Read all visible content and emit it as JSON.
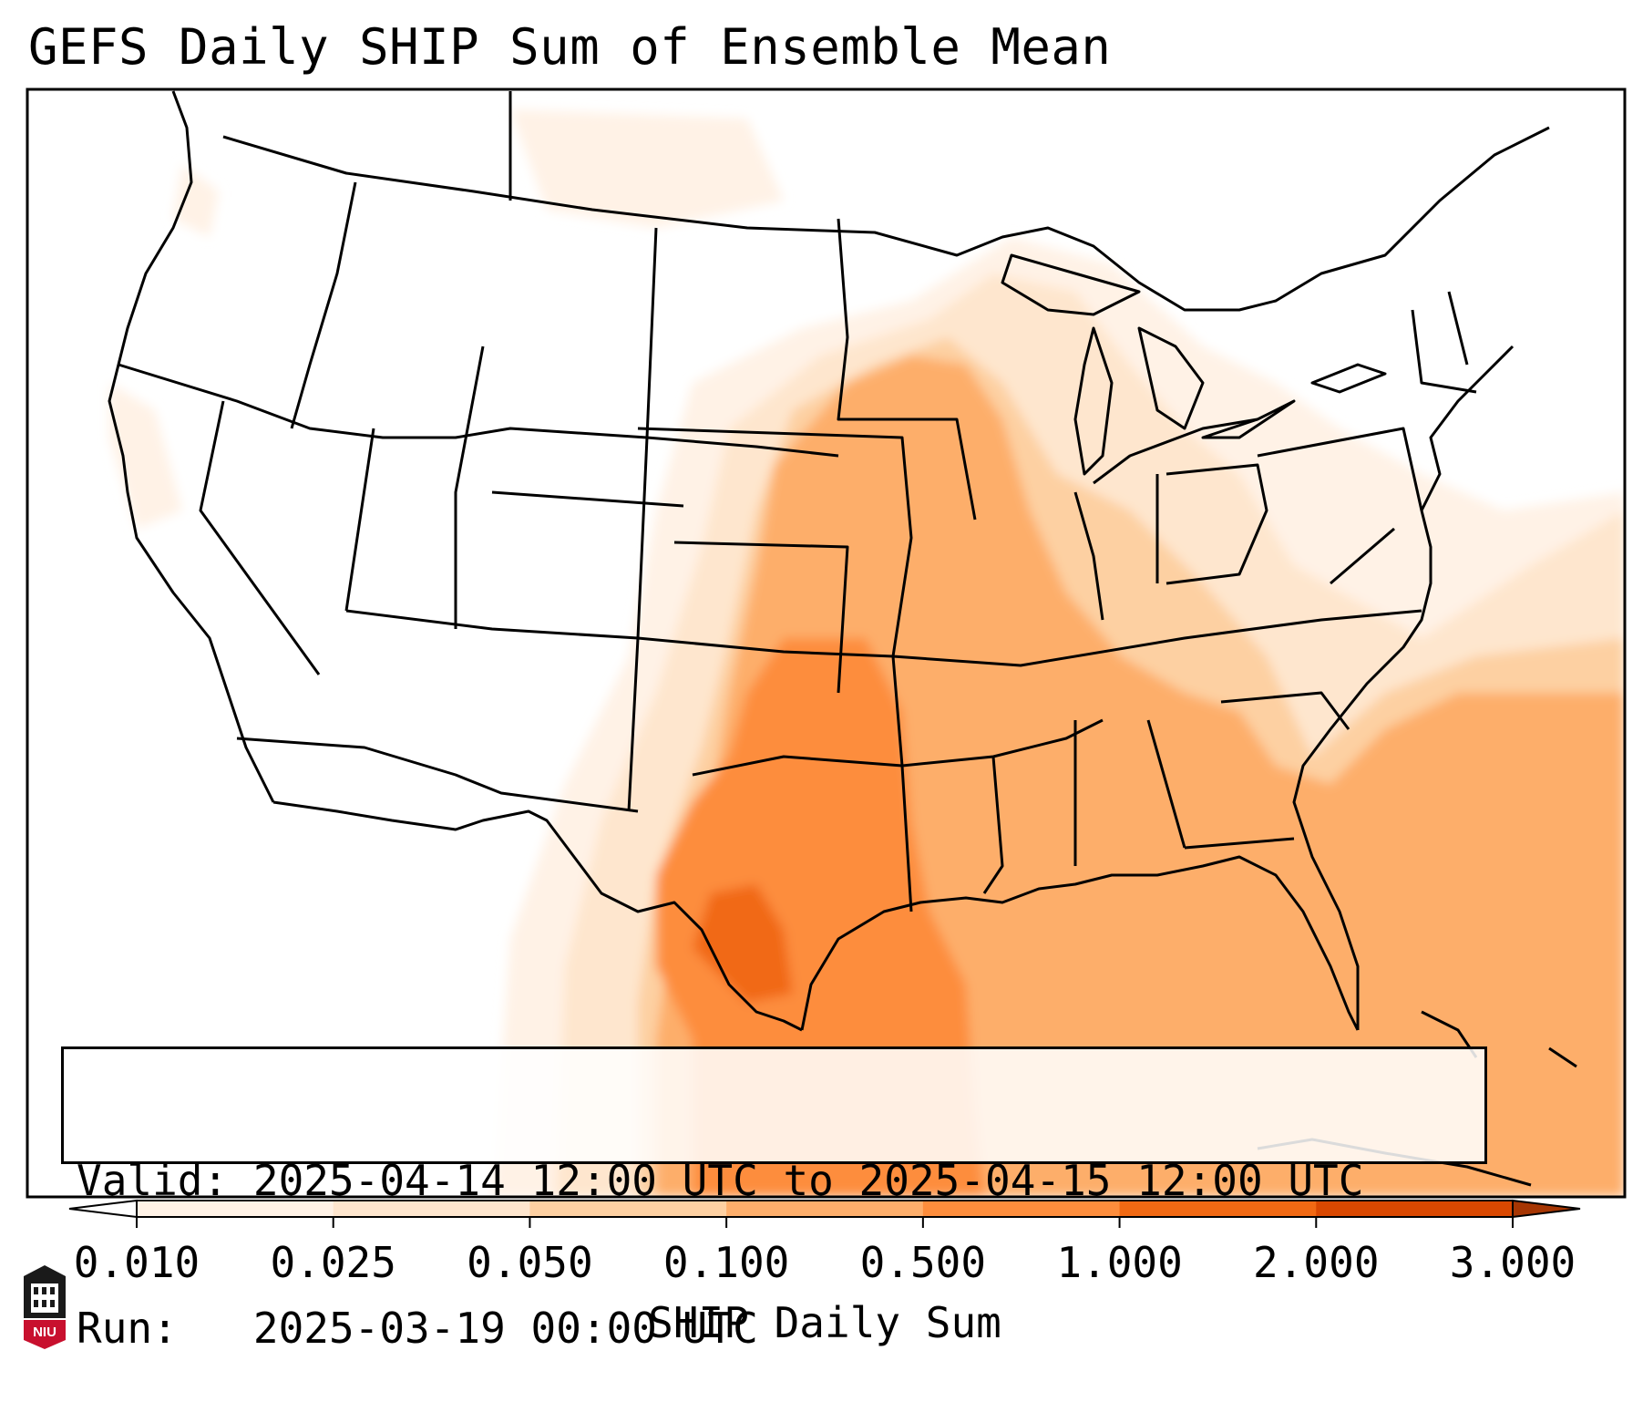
{
  "title": "GEFS Daily SHIP Sum of Ensemble Mean",
  "map": {
    "region": "Continental United States, Gulf of Mexico, western Atlantic",
    "field": "SHIP Daily Sum",
    "shading": "highest values over Oklahoma, Texas and the western Gulf of Mexico, decreasing outward through the Plains, Mississippi Valley, Southeast and the western Atlantic"
  },
  "info_box": {
    "valid_label": "Valid:",
    "valid_value": "2025-04-14 12:00 UTC to 2025-04-15 12:00 UTC",
    "run_label": "Run:",
    "run_value": "2025-03-19 00:00 UTC"
  },
  "colorbar": {
    "label": "SHIP Daily Sum",
    "ticks": [
      "0.010",
      "0.025",
      "0.050",
      "0.100",
      "0.500",
      "1.000",
      "2.000",
      "3.000"
    ],
    "colors": [
      "#fff2e6",
      "#fee6ce",
      "#fdd0a2",
      "#fdae6b",
      "#fd8d3c",
      "#f16913",
      "#d94801"
    ],
    "under_color": "#ffffff",
    "over_color": "#a63603"
  },
  "logo": {
    "text": "NIU"
  }
}
